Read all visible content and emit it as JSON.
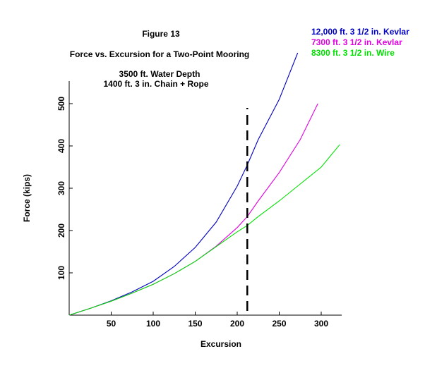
{
  "chart_data": {
    "type": "line",
    "title": "Figure 13",
    "subtitle": "Force vs. Excursion for a Two-Point Mooring",
    "notes": [
      "3500 ft. Water Depth",
      "1400 ft.  3 in. Chain + Rope"
    ],
    "xlabel": "Excursion",
    "ylabel": "Force (kips)",
    "xlim": [
      0,
      325
    ],
    "ylim": [
      0,
      550
    ],
    "xticks": [
      50,
      100,
      150,
      200,
      250,
      300
    ],
    "yticks": [
      100,
      200,
      300,
      400,
      500
    ],
    "grid": false,
    "legend_position": "top-right",
    "vline": {
      "x": 212,
      "ymax": 490,
      "style": "dashed",
      "color": "#000000"
    },
    "series": [
      {
        "name": "12,000 ft. 3 1/2 in. Kevlar",
        "color": "#0000c0",
        "x": [
          0,
          25,
          50,
          75,
          100,
          125,
          150,
          175,
          200,
          212,
          225,
          250,
          272
        ],
        "y": [
          0,
          16,
          34,
          55,
          80,
          115,
          160,
          220,
          305,
          355,
          415,
          510,
          620
        ]
      },
      {
        "name": "7300 ft. 3 1/2 in. Kevlar",
        "color": "#e000e0",
        "x": [
          0,
          25,
          50,
          75,
          100,
          125,
          150,
          175,
          200,
          212,
          225,
          250,
          275,
          296
        ],
        "y": [
          0,
          16,
          33,
          52,
          73,
          98,
          127,
          163,
          207,
          233,
          270,
          337,
          415,
          500
        ]
      },
      {
        "name": "8300 ft. 3 1/2 in. Wire",
        "color": "#00e000",
        "x": [
          0,
          25,
          50,
          75,
          100,
          125,
          150,
          175,
          200,
          212,
          225,
          250,
          275,
          300,
          322
        ],
        "y": [
          0,
          16,
          33,
          52,
          73,
          98,
          127,
          162,
          197,
          212,
          233,
          270,
          310,
          350,
          403
        ]
      }
    ]
  }
}
